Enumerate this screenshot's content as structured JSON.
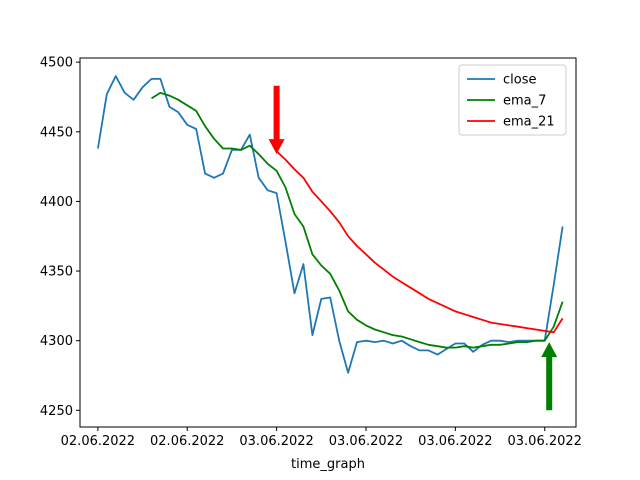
{
  "chart_data": {
    "type": "line",
    "xlabel": "time_graph",
    "ylabel": "",
    "ylim": [
      4238,
      4503
    ],
    "xlim": [
      -2,
      53.5
    ],
    "yticks": [
      4250,
      4300,
      4350,
      4400,
      4450,
      4500
    ],
    "xtick_positions": [
      0,
      10,
      20,
      30,
      40,
      50
    ],
    "xtick_labels": [
      "02.06.2022",
      "02.06.2022",
      "03.06.2022",
      "03.06.2022",
      "03.06.2022",
      "03.06.2022"
    ],
    "legend_position": "upper right",
    "grid": false,
    "series": [
      {
        "name": "close",
        "color": "#1f77b4",
        "x": [
          0,
          1,
          2,
          3,
          4,
          5,
          6,
          7,
          8,
          9,
          10,
          11,
          12,
          13,
          14,
          15,
          16,
          17,
          18,
          19,
          20,
          21,
          22,
          23,
          24,
          25,
          26,
          27,
          28,
          29,
          30,
          31,
          32,
          33,
          34,
          35,
          36,
          37,
          38,
          39,
          40,
          41,
          42,
          43,
          44,
          45,
          46,
          47,
          48,
          49,
          50,
          51,
          52
        ],
        "values": [
          4438,
          4477,
          4490,
          4478,
          4473,
          4482,
          4488,
          4488,
          4468,
          4464,
          4455,
          4452,
          4420,
          4417,
          4420,
          4437,
          4437,
          4448,
          4417,
          4408,
          4406,
          4371,
          4334,
          4355,
          4304,
          4330,
          4331,
          4300,
          4277,
          4299,
          4300,
          4299,
          4300,
          4298,
          4300,
          4296,
          4293,
          4293,
          4290,
          4294,
          4298,
          4298,
          4292,
          4297,
          4300,
          4300,
          4299,
          4300,
          4300,
          4300,
          4300,
          4340,
          4382
        ]
      },
      {
        "name": "ema_7",
        "color": "#008000",
        "x": [
          6,
          7,
          8,
          9,
          10,
          11,
          12,
          13,
          14,
          15,
          16,
          17,
          18,
          19,
          20,
          21,
          22,
          23,
          24,
          25,
          26,
          27,
          28,
          29,
          30,
          31,
          32,
          33,
          34,
          35,
          36,
          37,
          38,
          39,
          40,
          41,
          42,
          43,
          44,
          45,
          46,
          47,
          48,
          49,
          50,
          51,
          52
        ],
        "values": [
          4474,
          4478,
          4476,
          4473,
          4469,
          4465,
          4454,
          4445,
          4438,
          4438,
          4437,
          4440,
          4434,
          4427,
          4422,
          4410,
          4391,
          4382,
          4362,
          4354,
          4348,
          4336,
          4321,
          4315,
          4311,
          4308,
          4306,
          4304,
          4303,
          4301,
          4299,
          4297,
          4296,
          4295,
          4295,
          4296,
          4295,
          4296,
          4297,
          4297,
          4298,
          4299,
          4299,
          4300,
          4300,
          4310,
          4328
        ]
      },
      {
        "name": "ema_21",
        "color": "#ff0000",
        "x": [
          20,
          21,
          22,
          23,
          24,
          25,
          26,
          27,
          28,
          29,
          30,
          31,
          32,
          33,
          34,
          35,
          36,
          37,
          38,
          39,
          40,
          41,
          42,
          43,
          44,
          45,
          46,
          47,
          48,
          49,
          50,
          51,
          52
        ],
        "values": [
          4436,
          4430,
          4423,
          4417,
          4407,
          4400,
          4393,
          4385,
          4375,
          4368,
          4362,
          4356,
          4351,
          4346,
          4342,
          4338,
          4334,
          4330,
          4327,
          4324,
          4321,
          4319,
          4317,
          4315,
          4313,
          4312,
          4311,
          4310,
          4309,
          4308,
          4307,
          4306,
          4316
        ]
      }
    ],
    "annotations": [
      {
        "type": "arrow",
        "direction": "down",
        "color": "#ff0000",
        "x": 20,
        "y_from": 4483,
        "y_to": 4434
      },
      {
        "type": "arrow",
        "direction": "up",
        "color": "#008000",
        "x": 50.5,
        "y_from": 4250,
        "y_to": 4299
      }
    ]
  }
}
